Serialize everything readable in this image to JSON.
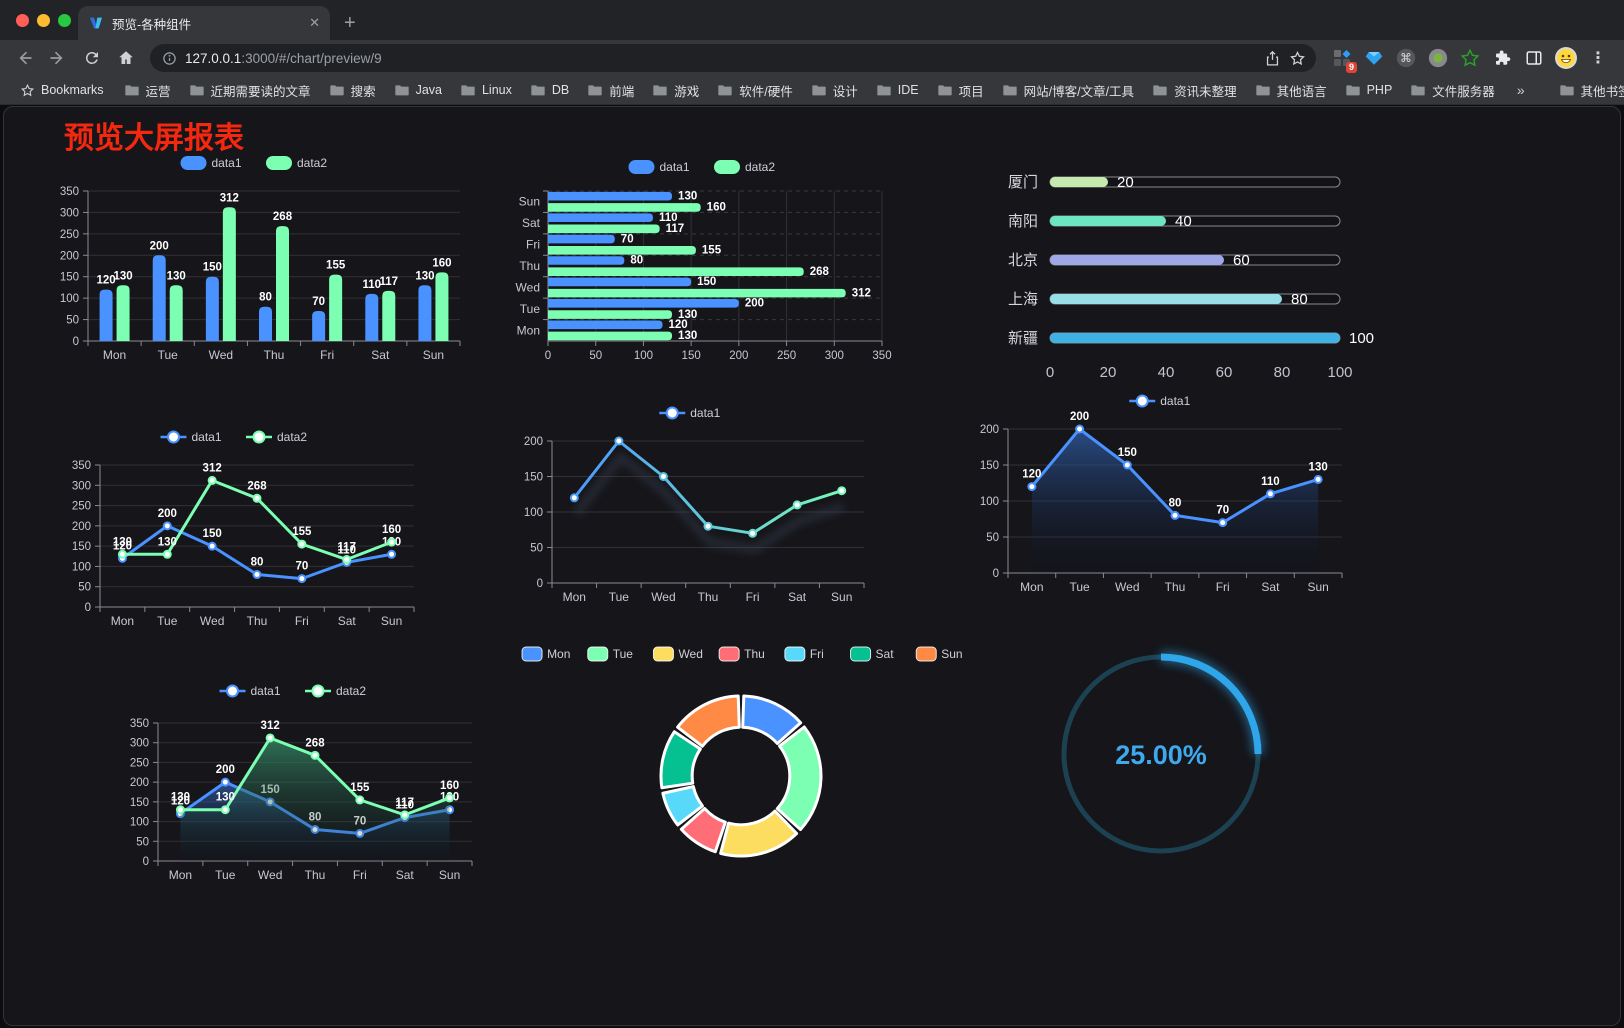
{
  "browser": {
    "traffic_lights": [
      "#ff5f57",
      "#febc2e",
      "#28c840"
    ],
    "tab_title": "预览-各种组件",
    "close_glyph": "✕",
    "new_tab_glyph": "+",
    "url_host": "127.0.0.1",
    "url_rest": ":3000/#/chart/preview/9",
    "ext_badge": "9",
    "bookmarks_label": "Bookmarks",
    "bookmarks": [
      "运营",
      "近期需要读的文章",
      "搜索",
      "Java",
      "Linux",
      "DB",
      "前端",
      "游戏",
      "软件/硬件",
      "设计",
      "IDE",
      "项目",
      "网站/博客/文章/工具",
      "资讯未整理",
      "其他语言",
      "PHP",
      "文件服务器"
    ],
    "overflow_glyph": "»",
    "other_bookmarks": "其他书签"
  },
  "page": {
    "title": "预览大屏报表",
    "title_color": "#f4270f"
  },
  "chart_data": [
    {
      "id": "c1",
      "type": "bar",
      "legend_position": "top",
      "grid": true,
      "categories": [
        "Mon",
        "Tue",
        "Wed",
        "Thu",
        "Fri",
        "Sat",
        "Sun"
      ],
      "series": [
        {
          "name": "data1",
          "color": "#4992ff",
          "values": [
            120,
            200,
            150,
            80,
            70,
            110,
            130
          ]
        },
        {
          "name": "data2",
          "color": "#7cffb2",
          "values": [
            130,
            130,
            312,
            268,
            155,
            117,
            160
          ]
        }
      ],
      "ylim": [
        0,
        350
      ],
      "ytick_step": 50,
      "data_labels": true
    },
    {
      "id": "c2",
      "type": "bar-horizontal",
      "legend_position": "top",
      "grid": true,
      "categories": [
        "Mon",
        "Tue",
        "Wed",
        "Thu",
        "Fri",
        "Sat",
        "Sun"
      ],
      "display_order_top_to_bottom": [
        "Sun",
        "Sat",
        "Fri",
        "Thu",
        "Wed",
        "Tue",
        "Mon"
      ],
      "series": [
        {
          "name": "data1",
          "color": "#4992ff",
          "values": [
            120,
            200,
            150,
            80,
            70,
            110,
            130
          ]
        },
        {
          "name": "data2",
          "color": "#7cffb2",
          "values": [
            130,
            130,
            312,
            268,
            155,
            117,
            160
          ]
        }
      ],
      "xlim": [
        0,
        350
      ],
      "xtick_step": 50,
      "data_labels": true
    },
    {
      "id": "c3",
      "type": "bar-progress",
      "rows": [
        {
          "label": "厦门",
          "value": 20,
          "color": "#c4ebad"
        },
        {
          "label": "南阳",
          "value": 40,
          "color": "#6be6c1"
        },
        {
          "label": "北京",
          "value": 60,
          "color": "#a0a7e6"
        },
        {
          "label": "上海",
          "value": 80,
          "color": "#96dee8"
        },
        {
          "label": "新疆",
          "value": 100,
          "color": "#3fb1e3"
        }
      ],
      "xlim": [
        0,
        100
      ],
      "xticks": [
        0,
        20,
        40,
        60,
        80,
        100
      ],
      "data_labels": true
    },
    {
      "id": "c4",
      "type": "line",
      "legend_position": "top",
      "grid": true,
      "categories": [
        "Mon",
        "Tue",
        "Wed",
        "Thu",
        "Fri",
        "Sat",
        "Sun"
      ],
      "series": [
        {
          "name": "data1",
          "color": "#4992ff",
          "values": [
            120,
            200,
            150,
            80,
            70,
            110,
            130
          ]
        },
        {
          "name": "data2",
          "color": "#7cffb2",
          "values": [
            130,
            130,
            312,
            268,
            155,
            117,
            160
          ]
        }
      ],
      "ylim": [
        0,
        350
      ],
      "ytick_step": 50,
      "data_labels": true
    },
    {
      "id": "c5",
      "type": "line",
      "legend_position": "top",
      "grid": true,
      "categories": [
        "Mon",
        "Tue",
        "Wed",
        "Thu",
        "Fri",
        "Sat",
        "Sun"
      ],
      "series": [
        {
          "name": "data1",
          "gradient": [
            "#4992ff",
            "#7cffb2"
          ],
          "values": [
            120,
            200,
            150,
            80,
            70,
            110,
            130
          ]
        }
      ],
      "ylim": [
        0,
        200
      ],
      "ytick_step": 50,
      "data_labels": false,
      "shadow": true
    },
    {
      "id": "c6",
      "type": "area",
      "legend_position": "top",
      "grid": true,
      "categories": [
        "Mon",
        "Tue",
        "Wed",
        "Thu",
        "Fri",
        "Sat",
        "Sun"
      ],
      "series": [
        {
          "name": "data1",
          "color": "#4992ff",
          "values": [
            120,
            200,
            150,
            80,
            70,
            110,
            130
          ]
        }
      ],
      "ylim": [
        0,
        200
      ],
      "ytick_step": 50,
      "data_labels": true
    },
    {
      "id": "c7",
      "type": "area",
      "legend_position": "top",
      "grid": true,
      "categories": [
        "Mon",
        "Tue",
        "Wed",
        "Thu",
        "Fri",
        "Sat",
        "Sun"
      ],
      "series": [
        {
          "name": "data1",
          "color": "#4992ff",
          "values": [
            120,
            200,
            150,
            80,
            70,
            110,
            130
          ]
        },
        {
          "name": "data2",
          "color": "#7cffb2",
          "values": [
            130,
            130,
            312,
            268,
            155,
            117,
            160
          ]
        }
      ],
      "ylim": [
        0,
        350
      ],
      "ytick_step": 50,
      "data_labels": true
    },
    {
      "id": "c8",
      "type": "pie",
      "legend_position": "top",
      "categories": [
        "Mon",
        "Tue",
        "Wed",
        "Thu",
        "Fri",
        "Sat",
        "Sun"
      ],
      "values": [
        120,
        200,
        150,
        80,
        70,
        110,
        130
      ],
      "colors": [
        "#4992ff",
        "#7cffb2",
        "#fddd60",
        "#ff6e76",
        "#58d9f9",
        "#05c091",
        "#ff8a45"
      ],
      "inner_radius_ratio": 0.61
    },
    {
      "id": "c9",
      "type": "gauge",
      "value": 25,
      "max": 100,
      "label": "25.00%",
      "color": "#2fa6e9",
      "track_color": "#1c4252",
      "text_color": "#3fa9ee"
    }
  ]
}
